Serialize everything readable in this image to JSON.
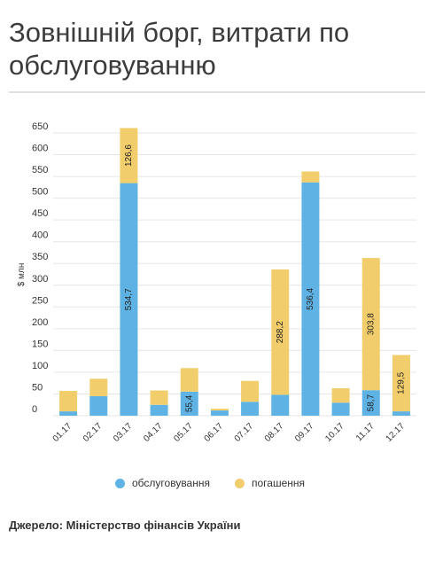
{
  "title": "Зовнішній борг, витрати по обслуговуванню",
  "source": "Джерело: Міністерство фінансів України",
  "colors": {
    "service": "#5eb3e4",
    "repayment": "#f2cd6b"
  },
  "chart_data": {
    "type": "bar",
    "stacked": true,
    "ylabel": "$ млн",
    "ylim": [
      0,
      650
    ],
    "yticks": [
      0,
      50,
      100,
      150,
      200,
      250,
      300,
      350,
      400,
      450,
      500,
      550,
      600,
      650
    ],
    "grid": true,
    "legend_position": "bottom",
    "categories": [
      "01.17",
      "02.17",
      "03.17",
      "04.17",
      "05.17",
      "06.17",
      "07.17",
      "08.17",
      "09.17",
      "10.17",
      "11.17",
      "12.17"
    ],
    "series": [
      {
        "name": "обслуговування",
        "values": [
          10,
          45,
          534.7,
          25,
          55.4,
          12,
          32,
          48,
          536.4,
          30,
          58.7,
          10
        ]
      },
      {
        "name": "погашення",
        "values": [
          47,
          40,
          126.6,
          33,
          54,
          4,
          48,
          288.2,
          25,
          33,
          303.8,
          129.5
        ]
      }
    ],
    "data_labels": [
      {
        "category": "03.17",
        "series": "обслуговування",
        "text": "534,7"
      },
      {
        "category": "03.17",
        "series": "погашення",
        "text": "126,6"
      },
      {
        "category": "05.17",
        "series": "обслуговування",
        "text": "55,4"
      },
      {
        "category": "08.17",
        "series": "погашення",
        "text": "288,2"
      },
      {
        "category": "09.17",
        "series": "обслуговування",
        "text": "536,4"
      },
      {
        "category": "11.17",
        "series": "обслуговування",
        "text": "58,7"
      },
      {
        "category": "11.17",
        "series": "погашення",
        "text": "303,8"
      },
      {
        "category": "12.17",
        "series": "погашення",
        "text": "129,5"
      }
    ]
  }
}
